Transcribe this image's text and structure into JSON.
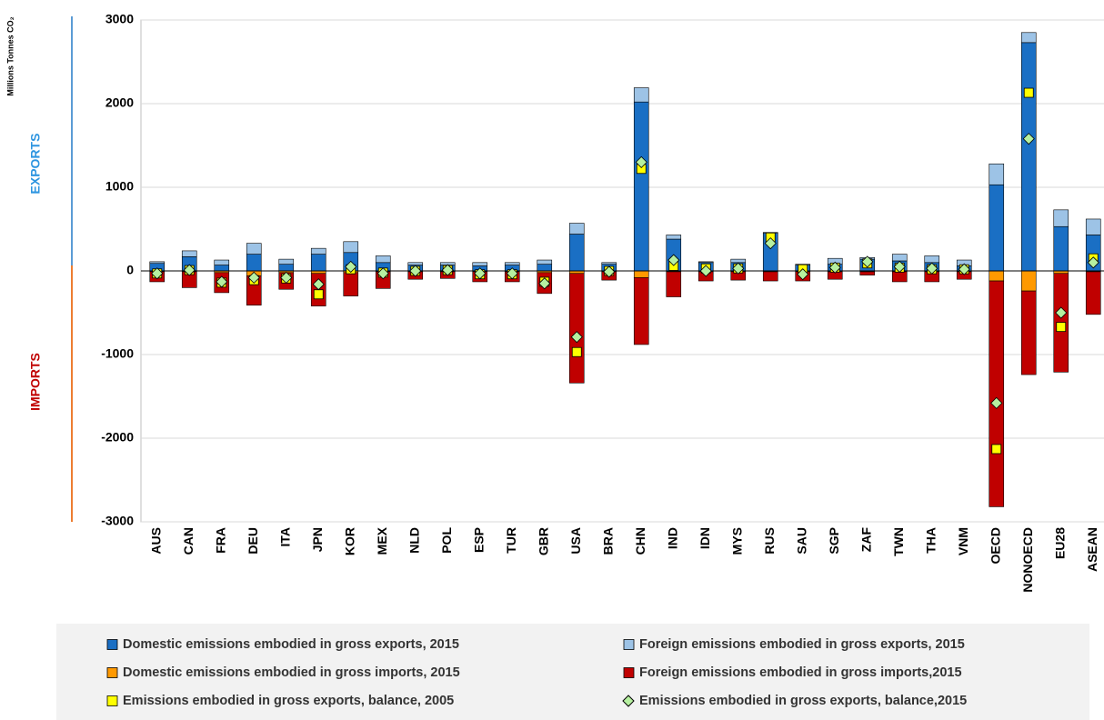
{
  "chart_data": {
    "type": "bar",
    "ylabel": "Millions Tonnes CO₂",
    "upper_label": "EXPORTS",
    "lower_label": "IMPORTS",
    "categories": [
      "AUS",
      "CAN",
      "FRA",
      "DEU",
      "ITA",
      "JPN",
      "KOR",
      "MEX",
      "NLD",
      "POL",
      "ESP",
      "TUR",
      "GBR",
      "USA",
      "BRA",
      "CHN",
      "IND",
      "IDN",
      "MYS",
      "RUS",
      "SAU",
      "SGP",
      "ZAF",
      "TWN",
      "THA",
      "VNM",
      "OECD",
      "NONOECD",
      "EU28",
      "ASEAN"
    ],
    "series": [
      {
        "name": "Domestic emissions embodied in gross exports, 2015",
        "color": "#1a6fc4",
        "marker": "bar",
        "values": [
          90,
          170,
          70,
          200,
          80,
          200,
          220,
          100,
          70,
          70,
          60,
          70,
          80,
          440,
          80,
          2020,
          380,
          100,
          100,
          450,
          70,
          80,
          140,
          120,
          100,
          60,
          1030,
          2730,
          530,
          430
        ]
      },
      {
        "name": "Foreign emissions embodied in gross exports, 2015",
        "color": "#9dc3e6",
        "marker": "bar",
        "values": [
          20,
          70,
          60,
          130,
          60,
          70,
          130,
          80,
          30,
          30,
          40,
          30,
          50,
          130,
          20,
          170,
          50,
          10,
          40,
          10,
          10,
          70,
          20,
          80,
          80,
          70,
          250,
          120,
          200,
          190
        ]
      },
      {
        "name": "Domestic emissions embodied in gross imports, 2015",
        "color": "#ff9900",
        "marker": "bar",
        "values": [
          -10,
          -10,
          -20,
          -60,
          -20,
          -30,
          -20,
          -10,
          -10,
          -10,
          -10,
          -10,
          -20,
          -30,
          -10,
          -80,
          -10,
          -10,
          -10,
          -10,
          -10,
          -10,
          -10,
          -10,
          -10,
          -10,
          -120,
          -240,
          -30,
          -10
        ]
      },
      {
        "name": "Foreign emissions embodied in gross imports,2015",
        "color": "#c00000",
        "marker": "bar",
        "values": [
          -120,
          -190,
          -240,
          -350,
          -200,
          -390,
          -280,
          -200,
          -90,
          -80,
          -120,
          -120,
          -250,
          -1310,
          -100,
          -800,
          -300,
          -110,
          -100,
          -110,
          -110,
          -90,
          -40,
          -120,
          -120,
          -90,
          -2700,
          -1000,
          -1180,
          -510
        ]
      },
      {
        "name": "Emissions embodied in gross exports, balance, 2005",
        "color": "#ffff00",
        "marker": "square",
        "values": [
          -30,
          10,
          -140,
          -110,
          -90,
          -280,
          20,
          -20,
          0,
          10,
          -40,
          -40,
          -130,
          -970,
          0,
          1220,
          60,
          30,
          30,
          400,
          20,
          40,
          90,
          40,
          20,
          20,
          -2130,
          2130,
          -670,
          150
        ]
      },
      {
        "name": "Emissions embodied in gross exports, balance,2015",
        "color": "#b6f0a0",
        "marker": "diamond",
        "values": [
          -30,
          10,
          -130,
          -80,
          -80,
          -160,
          50,
          -30,
          0,
          10,
          -30,
          -30,
          -150,
          -790,
          -10,
          1300,
          130,
          0,
          30,
          330,
          -40,
          40,
          110,
          50,
          30,
          20,
          -1580,
          1580,
          -500,
          100
        ]
      }
    ],
    "ylim": [
      -3000,
      3000
    ],
    "yticks": [
      -3000,
      -2000,
      -1000,
      0,
      1000,
      2000,
      3000
    ],
    "grid": true
  }
}
